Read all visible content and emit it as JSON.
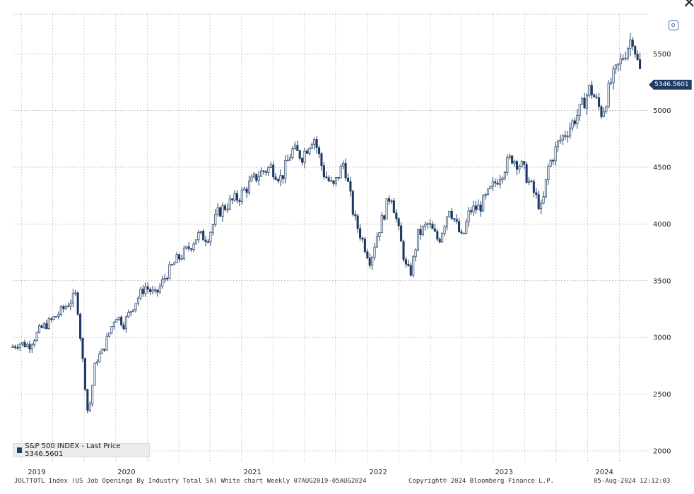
{
  "window": {
    "close_glyph": "✕",
    "zoom_icon": "zoom-icon"
  },
  "legend": {
    "label": "S&P 500 INDEX - Last Price 5346.5601",
    "swatch_color": "#1f3b63"
  },
  "last_price_tag": "5346.5601",
  "footer": {
    "left": "JOLTTOTL Index (US Job Openings By Industry Total SA) White chart  Weekly 07AUG2019-05AUG2024",
    "center": "Copyright© 2024 Bloomberg Finance L.P.",
    "right": "05-Aug-2024 12:12:03"
  },
  "chart_data": {
    "type": "candlestick",
    "frequency": "weekly",
    "series_color": "#1f3b63",
    "x_axis": {
      "start": "2019-08-07",
      "end": "2024-08-05",
      "ticks": [
        "2019",
        "2020",
        "2021",
        "2022",
        "2023",
        "2024"
      ]
    },
    "y_axis": {
      "position": "right",
      "ticks": [
        2000,
        2500,
        3000,
        3500,
        4000,
        4500,
        5000,
        5500
      ],
      "range": [
        1900,
        5850
      ]
    },
    "grid": "dotted",
    "legend_position": "bottom-left",
    "last_value": 5346.5601,
    "series": [
      {
        "points": [
          [
            "2019-08-07",
            2910
          ],
          [
            "2019-09-01",
            2950
          ],
          [
            "2019-10-01",
            2930
          ],
          [
            "2019-11-01",
            3070
          ],
          [
            "2019-12-01",
            3140
          ],
          [
            "2020-01-01",
            3230
          ],
          [
            "2020-02-15",
            3380
          ],
          [
            "2020-02-28",
            2950
          ],
          [
            "2020-03-20",
            2300
          ],
          [
            "2020-04-10",
            2790
          ],
          [
            "2020-05-01",
            2880
          ],
          [
            "2020-06-08",
            3200
          ],
          [
            "2020-07-01",
            3120
          ],
          [
            "2020-08-01",
            3300
          ],
          [
            "2020-09-01",
            3450
          ],
          [
            "2020-10-01",
            3370
          ],
          [
            "2020-11-01",
            3550
          ],
          [
            "2020-12-01",
            3680
          ],
          [
            "2021-01-01",
            3770
          ],
          [
            "2021-02-01",
            3900
          ],
          [
            "2021-03-01",
            3880
          ],
          [
            "2021-04-01",
            4100
          ],
          [
            "2021-05-01",
            4180
          ],
          [
            "2021-06-01",
            4240
          ],
          [
            "2021-07-01",
            4350
          ],
          [
            "2021-08-01",
            4450
          ],
          [
            "2021-09-01",
            4500
          ],
          [
            "2021-10-01",
            4400
          ],
          [
            "2021-11-01",
            4650
          ],
          [
            "2021-12-01",
            4600
          ],
          [
            "2022-01-03",
            4780
          ],
          [
            "2022-02-01",
            4450
          ],
          [
            "2022-03-01",
            4320
          ],
          [
            "2022-04-01",
            4550
          ],
          [
            "2022-05-01",
            4050
          ],
          [
            "2022-06-17",
            3670
          ],
          [
            "2022-07-01",
            3850
          ],
          [
            "2022-08-15",
            4280
          ],
          [
            "2022-09-30",
            3590
          ],
          [
            "2022-10-13",
            3580
          ],
          [
            "2022-11-01",
            3900
          ],
          [
            "2022-12-01",
            4000
          ],
          [
            "2023-01-01",
            3850
          ],
          [
            "2023-02-01",
            4150
          ],
          [
            "2023-03-10",
            3860
          ],
          [
            "2023-04-01",
            4120
          ],
          [
            "2023-05-01",
            4150
          ],
          [
            "2023-06-01",
            4300
          ],
          [
            "2023-07-01",
            4450
          ],
          [
            "2023-07-31",
            4590
          ],
          [
            "2023-09-01",
            4500
          ],
          [
            "2023-10-27",
            4120
          ],
          [
            "2023-11-15",
            4500
          ],
          [
            "2023-12-15",
            4720
          ],
          [
            "2024-01-15",
            4850
          ],
          [
            "2024-02-15",
            5000
          ],
          [
            "2024-03-15",
            5200
          ],
          [
            "2024-04-19",
            4970
          ],
          [
            "2024-05-15",
            5250
          ],
          [
            "2024-06-15",
            5450
          ],
          [
            "2024-07-16",
            5660
          ],
          [
            "2024-08-05",
            5346.5601
          ]
        ]
      }
    ]
  }
}
